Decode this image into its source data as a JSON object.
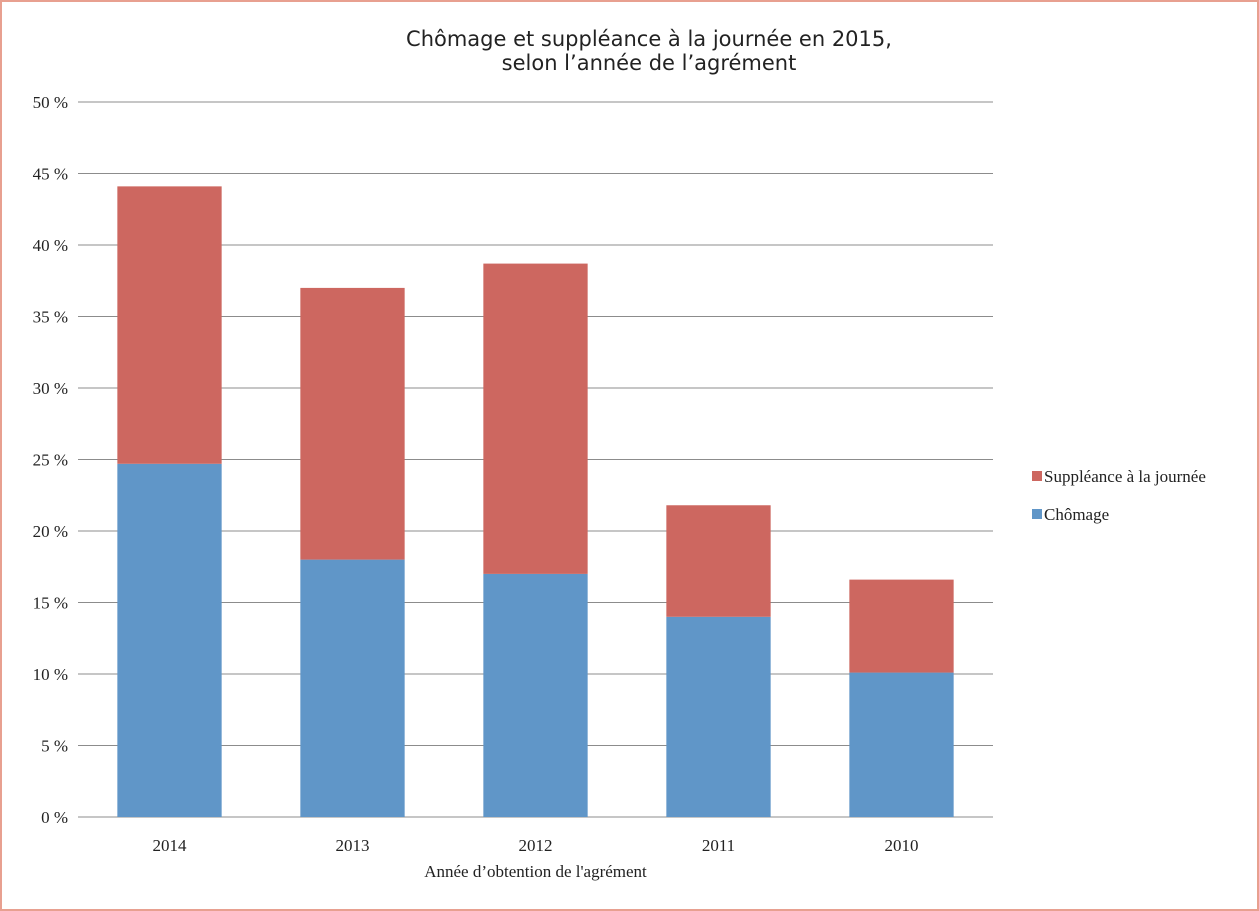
{
  "chart_data": {
    "type": "bar",
    "stacked": true,
    "title_lines": [
      "Chômage et suppléance à la journée en 2015,",
      "selon l’année de l’agrément"
    ],
    "xlabel": "Année d’obtention de l'agrément",
    "ylabel": "",
    "categories": [
      "2014",
      "2013",
      "2012",
      "2011",
      "2010"
    ],
    "series": [
      {
        "name": "Chômage",
        "color": "#6096c8",
        "values": [
          24.7,
          18.0,
          17.0,
          14.0,
          10.1
        ]
      },
      {
        "name": "Suppléance à la journée",
        "color": "#cd6760",
        "values": [
          19.4,
          19.0,
          21.7,
          7.8,
          6.5
        ]
      }
    ],
    "ylim": [
      0,
      50
    ],
    "yticks": [
      0,
      5,
      10,
      15,
      20,
      25,
      30,
      35,
      40,
      45,
      50
    ],
    "ytick_suffix": " %",
    "grid": true,
    "legend_position": "right",
    "legend_order": [
      "Suppléance à la journée",
      "Chômage"
    ]
  }
}
